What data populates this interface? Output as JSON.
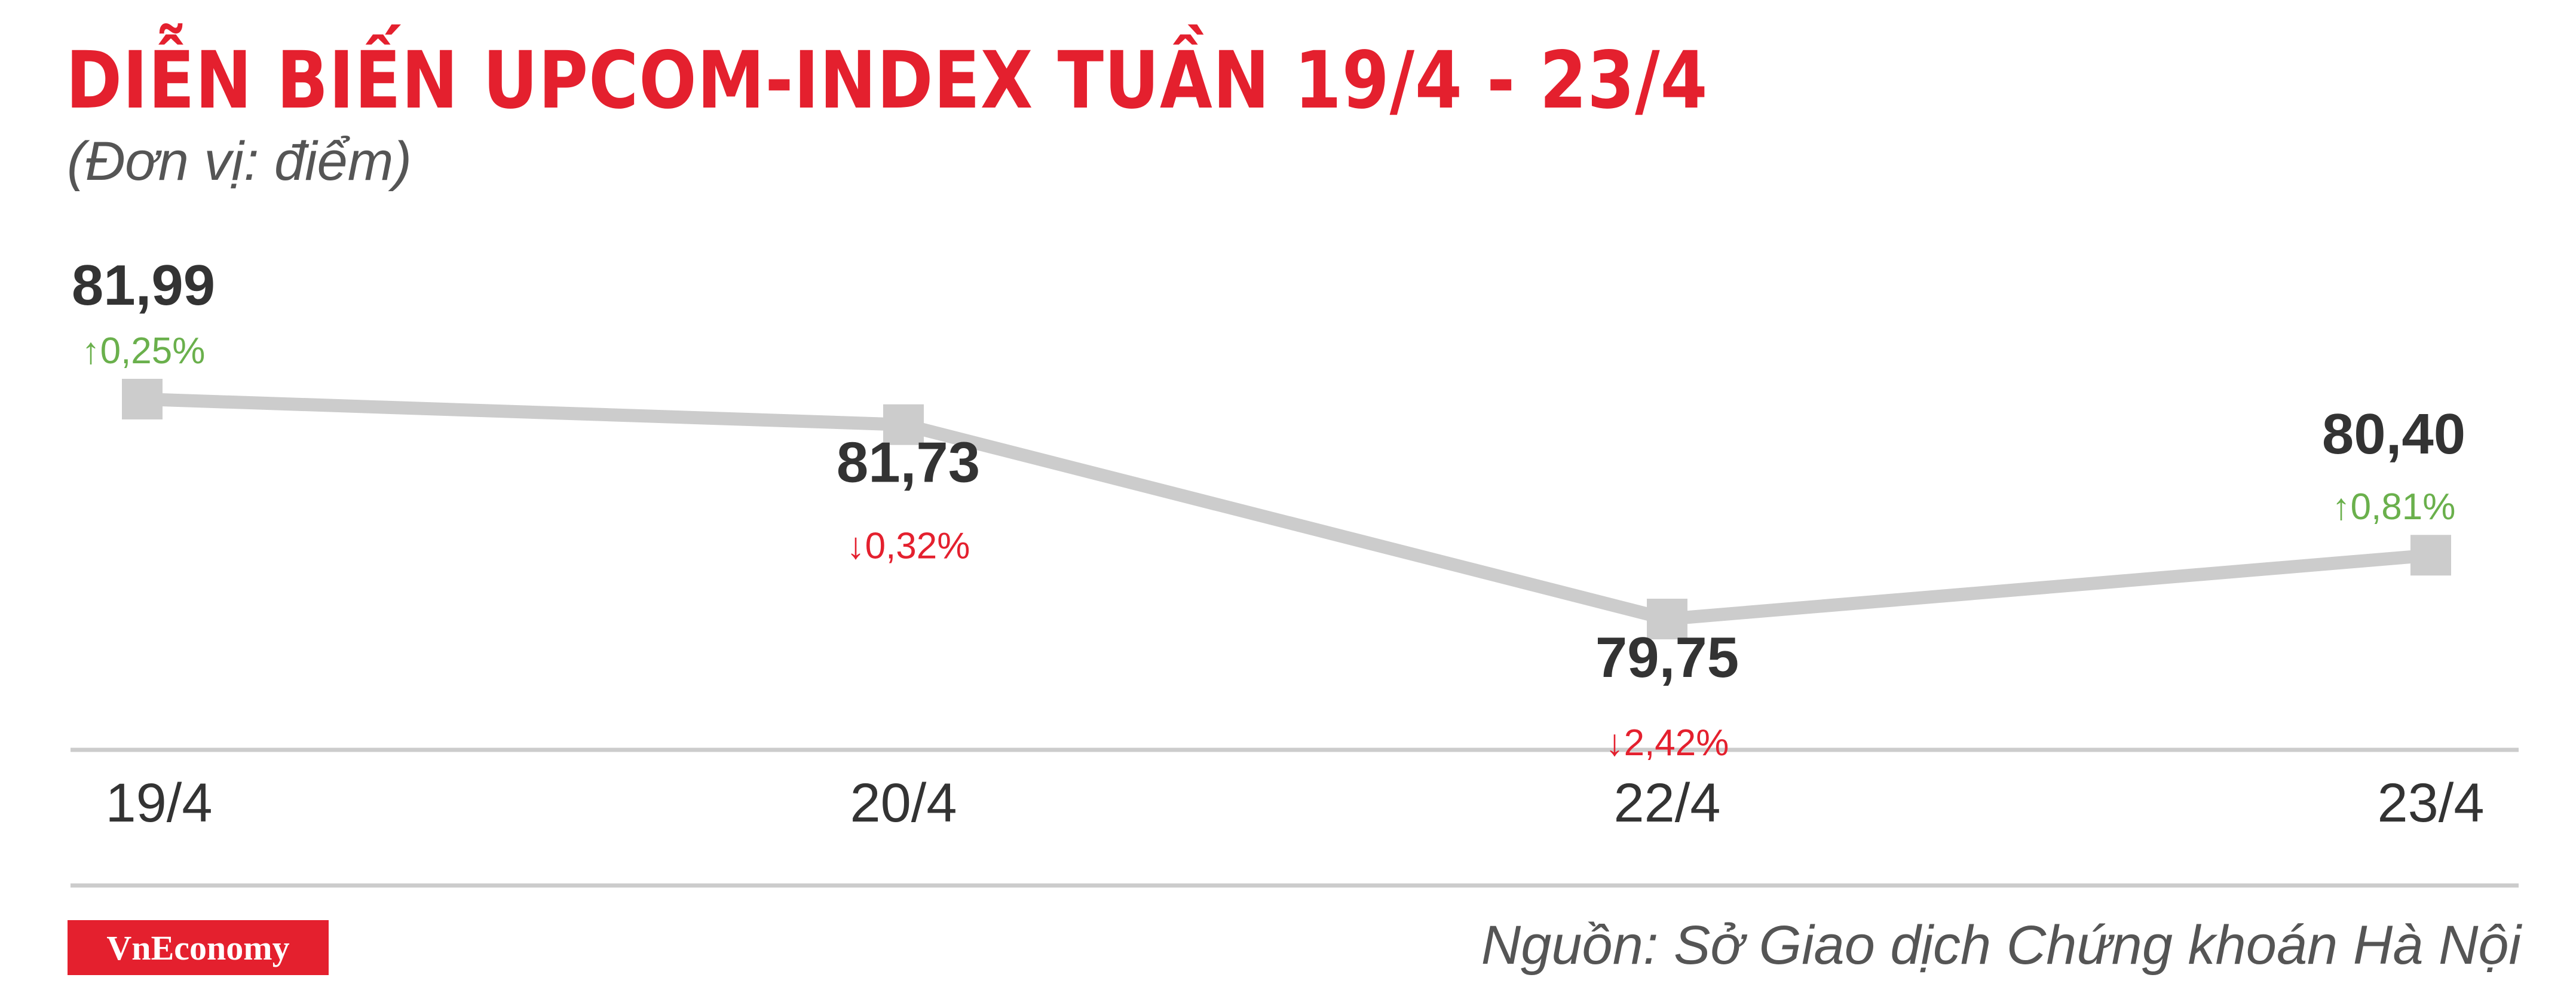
{
  "header": {
    "title": "DIỄN BIẾN UPCOM-INDEX TUẦN 19/4 - 23/4",
    "subtitle": "(Đơn vị: điểm)"
  },
  "footer": {
    "brand": "VnEconomy",
    "source": "Nguồn: Sở Giao dịch Chứng khoán Hà Nội"
  },
  "colors": {
    "accent": "#e4202e",
    "up": "#6ab04c",
    "down": "#e4202e",
    "line": "#cccccc"
  },
  "chart_data": {
    "type": "line",
    "title": "DIỄN BIẾN UPCOM-INDEX TUẦN 19/4 - 23/4",
    "ylabel": "(Đơn vị: điểm)",
    "categories": [
      "19/4",
      "20/4",
      "22/4",
      "23/4"
    ],
    "series": [
      {
        "values": [
          81.99,
          81.73,
          79.75,
          80.4
        ],
        "value_labels": [
          "81,99",
          "81,73",
          "79,75",
          "80,40"
        ],
        "changes": [
          "0,25%",
          "0,32%",
          "2,42%",
          "0,81%"
        ],
        "directions": [
          "up",
          "down",
          "down",
          "up"
        ]
      }
    ],
    "grid": false,
    "legend": "none"
  }
}
